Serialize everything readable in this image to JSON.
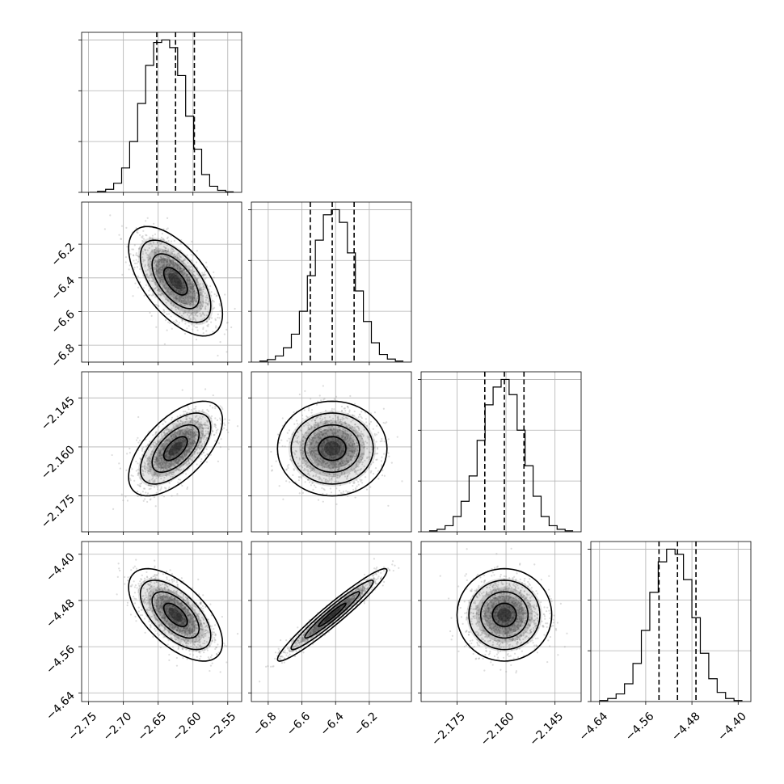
{
  "colors": {
    "line": "#000000",
    "grid": "#b0b0b0",
    "points": "#9a9a9a"
  },
  "chart_data": {
    "type": "corner",
    "title": "",
    "grid": true,
    "quantiles": [
      0.16,
      0.5,
      0.84
    ],
    "parameters": [
      {
        "name": "",
        "mean": -2.625,
        "std": 0.027,
        "range": [
          -2.76,
          -2.53
        ],
        "ticks": [
          -2.75,
          -2.7,
          -2.65,
          -2.6,
          -2.55
        ],
        "tick_labels": [
          "−2.75",
          "−2.70",
          "−2.65",
          "−2.60",
          "−2.55"
        ],
        "quantile_values": [
          -2.652,
          -2.625,
          -2.598
        ],
        "hist_counts": [
          0,
          2,
          6,
          18,
          48,
          100,
          175,
          250,
          295,
          300,
          285,
          230,
          150,
          85,
          35,
          12,
          4,
          1
        ]
      },
      {
        "name": "",
        "mean": -6.42,
        "std": 0.13,
        "range": [
          -6.9,
          -5.95
        ],
        "ticks": [
          -6.8,
          -6.6,
          -6.4,
          -6.2
        ],
        "tick_labels": [
          "−6.8",
          "−6.6",
          "−6.4",
          "−6.2"
        ],
        "quantile_values": [
          -6.55,
          -6.42,
          -6.29
        ],
        "hist_counts": [
          2,
          5,
          12,
          28,
          55,
          100,
          170,
          240,
          290,
          300,
          275,
          215,
          140,
          80,
          38,
          15,
          6,
          2
        ]
      },
      {
        "name": "",
        "mean": -2.1605,
        "std": 0.0058,
        "range": [
          -2.186,
          -2.137
        ],
        "ticks": [
          -2.175,
          -2.16,
          -2.145
        ],
        "tick_labels": [
          "−2.175",
          "−2.160",
          "−2.145"
        ],
        "quantile_values": [
          -2.1665,
          -2.1605,
          -2.1545
        ],
        "hist_counts": [
          2,
          5,
          12,
          30,
          60,
          110,
          180,
          250,
          285,
          300,
          270,
          200,
          130,
          70,
          30,
          12,
          5,
          2
        ]
      },
      {
        "name": "",
        "mean": -4.505,
        "std": 0.032,
        "range": [
          -4.655,
          -4.378
        ],
        "ticks": [
          -4.64,
          -4.56,
          -4.48,
          -4.4
        ],
        "tick_labels": [
          "−4.64",
          "−4.56",
          "−4.48",
          "−4.40"
        ],
        "quantile_values": [
          -4.537,
          -4.505,
          -4.473
        ],
        "hist_counts": [
          2,
          6,
          15,
          35,
          75,
          140,
          215,
          275,
          300,
          290,
          240,
          165,
          95,
          45,
          18,
          6,
          2
        ]
      }
    ],
    "correlations": [
      [
        1.0,
        -0.6,
        0.6,
        -0.6
      ],
      [
        -0.6,
        1.0,
        0.0,
        0.96
      ],
      [
        0.6,
        0.0,
        1.0,
        0.0
      ],
      [
        -0.6,
        0.96,
        0.0,
        1.0
      ]
    ],
    "contour_levels_sigma": [
      0.5,
      1.0,
      1.5,
      2.0
    ]
  }
}
